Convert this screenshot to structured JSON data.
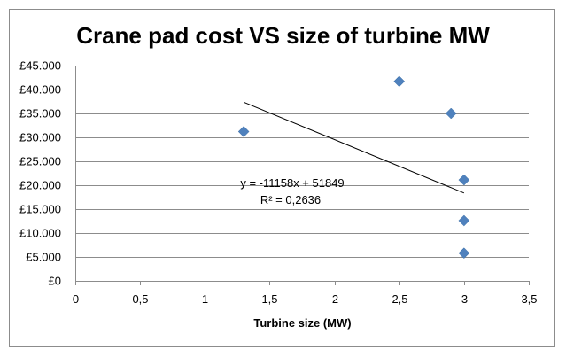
{
  "chart_data": {
    "type": "scatter",
    "title": "Crane pad cost VS size of turbine MW",
    "xlabel": "Turbine size (MW)",
    "ylabel": "",
    "xlim": [
      0,
      3.5
    ],
    "ylim": [
      0,
      45000
    ],
    "x_ticks": [
      "0",
      "0,5",
      "1",
      "1,5",
      "2",
      "2,5",
      "3",
      "3,5"
    ],
    "x_tick_values": [
      0,
      0.5,
      1,
      1.5,
      2,
      2.5,
      3,
      3.5
    ],
    "y_ticks": [
      "£0",
      "£5.000",
      "£10.000",
      "£15.000",
      "£20.000",
      "£25.000",
      "£30.000",
      "£35.000",
      "£40.000",
      "£45.000"
    ],
    "y_tick_values": [
      0,
      5000,
      10000,
      15000,
      20000,
      25000,
      30000,
      35000,
      40000,
      45000
    ],
    "grid": "horizontal",
    "series": [
      {
        "color": "#4f81bd",
        "marker": "diamond",
        "points": [
          {
            "x": 1.3,
            "y": 31200
          },
          {
            "x": 2.5,
            "y": 41700
          },
          {
            "x": 2.9,
            "y": 35000
          },
          {
            "x": 3.0,
            "y": 21100
          },
          {
            "x": 3.0,
            "y": 12600
          },
          {
            "x": 3.0,
            "y": 5800
          }
        ]
      }
    ],
    "trendline": {
      "slope": -11158,
      "intercept": 51849,
      "x_range": [
        1.3,
        3.0
      ],
      "color": "#000000",
      "equation_text": "y = -11158x + 51849",
      "r2_text": "R² = 0,2636"
    }
  }
}
